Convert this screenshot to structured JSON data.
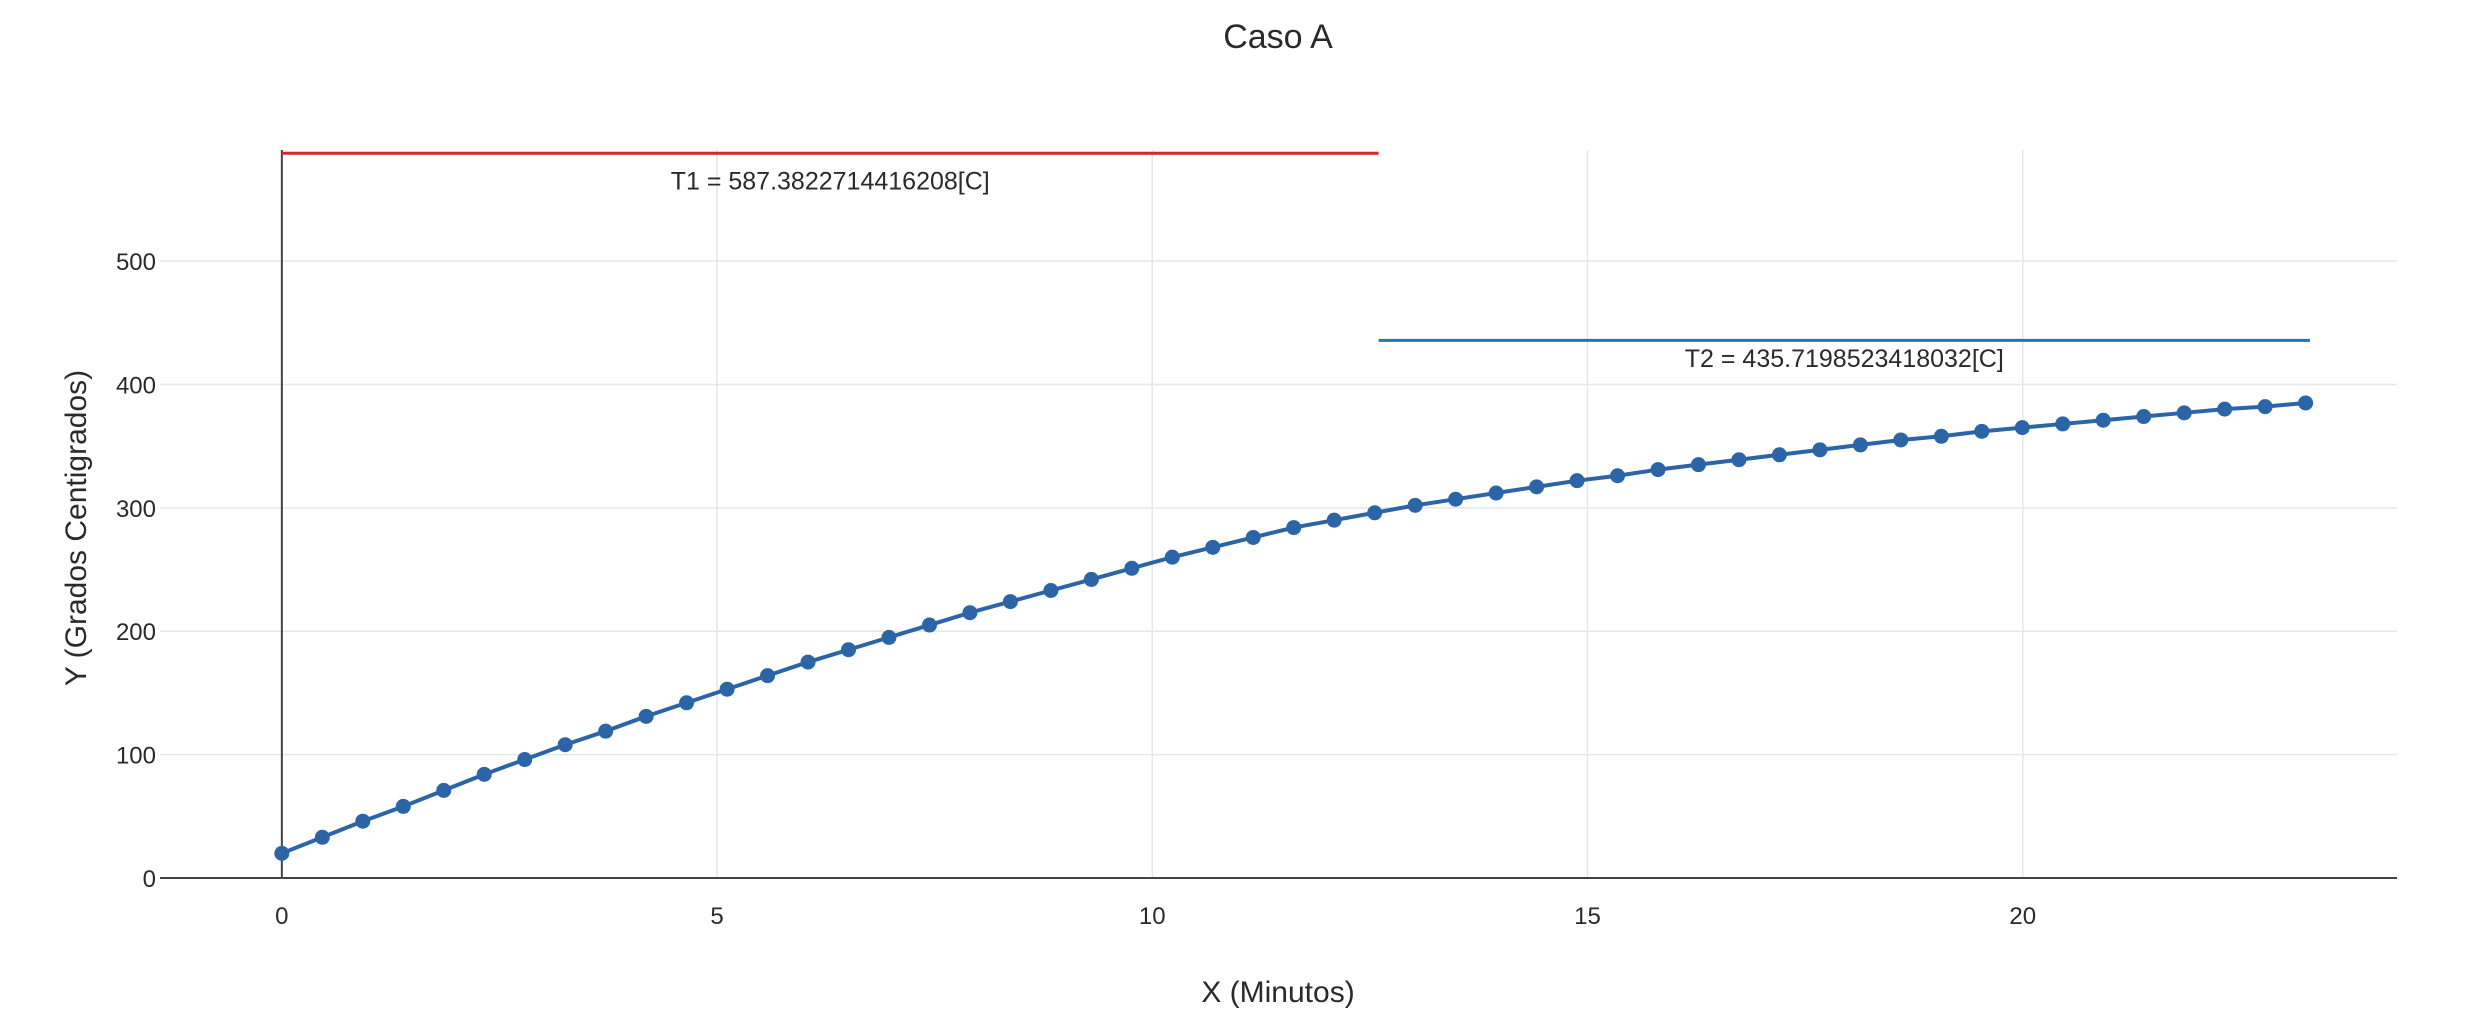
{
  "chart_data": {
    "type": "line",
    "title": "Caso A",
    "xlabel": "X (Minutos)",
    "ylabel": "Y (Grados Centigrados)",
    "xlim": [
      -1.4,
      24.3
    ],
    "ylim": [
      0,
      590
    ],
    "grid": true,
    "x_ticks": [
      0,
      5,
      10,
      15,
      20
    ],
    "y_ticks": [
      0,
      100,
      200,
      300,
      400,
      500
    ],
    "series": [
      {
        "type": "line+markers",
        "color": "#2c64a8",
        "x": [
          0,
          0.465,
          0.93,
          1.395,
          1.86,
          2.325,
          2.79,
          3.255,
          3.72,
          4.185,
          4.65,
          5.115,
          5.58,
          6.045,
          6.51,
          6.975,
          7.44,
          7.905,
          8.37,
          8.835,
          9.3,
          9.765,
          10.23,
          10.695,
          11.16,
          11.625,
          12.09,
          12.555,
          13.02,
          13.485,
          13.95,
          14.415,
          14.88,
          15.345,
          15.81,
          16.275,
          16.74,
          17.205,
          17.67,
          18.135,
          18.6,
          19.065,
          19.53,
          19.995,
          20.46,
          20.925,
          21.39,
          21.855,
          22.32,
          22.785,
          23.25
        ],
        "y": [
          20,
          33,
          46,
          58,
          71,
          84,
          96,
          108,
          119,
          131,
          142,
          153,
          164,
          175,
          185,
          195,
          205,
          215,
          224,
          233,
          242,
          251,
          260,
          268,
          276,
          284,
          290,
          296,
          302,
          307,
          312,
          317,
          322,
          326,
          331,
          335,
          339,
          343,
          347,
          351,
          355,
          358,
          362,
          365,
          368,
          371,
          374,
          377,
          380,
          382,
          385
        ]
      },
      {
        "type": "line",
        "color": "#d62728",
        "x": [
          0,
          12.6
        ],
        "y": [
          587.3822714416208,
          587.3822714416208
        ]
      },
      {
        "type": "line",
        "color": "#1f77b4",
        "x": [
          12.6,
          23.3
        ],
        "y": [
          435.7198523418032,
          435.7198523418032
        ]
      }
    ],
    "annotations": [
      {
        "text": "T1 = 587.3822714416208[C]",
        "x": 6.3,
        "y": 558
      },
      {
        "text": "T2 = 435.7198523418032[C]",
        "x": 17.95,
        "y": 414
      }
    ]
  }
}
